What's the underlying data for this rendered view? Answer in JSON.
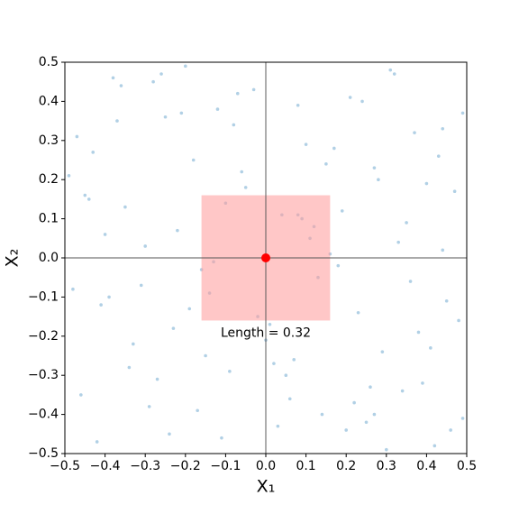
{
  "chart_data": {
    "type": "scatter",
    "x_label": "X₁",
    "y_label": "X₂",
    "x": [
      -0.47,
      -0.41,
      -0.36,
      -0.29,
      -0.22,
      -0.18,
      -0.11,
      -0.05,
      0.02,
      0.08,
      0.13,
      0.19,
      0.26,
      0.31,
      0.38,
      0.44,
      0.49,
      -0.44,
      -0.33,
      -0.25,
      -0.14,
      -0.03,
      0.06,
      0.17,
      0.23,
      0.35,
      0.42,
      -0.49,
      -0.38,
      -0.27,
      -0.16,
      -0.08,
      0.01,
      0.11,
      0.21,
      0.29,
      0.4,
      0.46,
      -0.43,
      -0.31,
      -0.2,
      -0.09,
      0.04,
      0.14,
      0.27,
      0.33,
      0.48,
      -0.46,
      -0.35,
      -0.24,
      -0.12,
      0.0,
      0.09,
      0.18,
      0.3,
      0.37,
      0.45,
      -0.4,
      -0.28,
      -0.17,
      -0.06,
      0.07,
      0.16,
      0.24,
      0.34,
      0.43,
      -0.48,
      -0.37,
      -0.23,
      -0.1,
      0.03,
      0.12,
      0.22,
      0.32,
      0.41,
      0.47,
      -0.42,
      -0.3,
      -0.19,
      -0.07,
      0.05,
      0.15,
      0.25,
      0.36,
      0.44,
      -0.45,
      -0.34,
      -0.21,
      -0.13,
      -0.02,
      0.1,
      0.2,
      0.28,
      0.39,
      0.49,
      -0.39,
      -0.26,
      -0.15,
      0.08,
      0.27
    ],
    "y": [
      0.31,
      -0.12,
      0.44,
      -0.38,
      0.07,
      0.25,
      -0.46,
      0.18,
      -0.27,
      0.39,
      -0.05,
      0.12,
      -0.33,
      0.48,
      -0.19,
      0.02,
      -0.41,
      0.15,
      -0.22,
      0.36,
      -0.09,
      0.43,
      -0.36,
      0.28,
      -0.14,
      0.09,
      -0.48,
      0.21,
      0.46,
      -0.31,
      -0.03,
      0.34,
      -0.17,
      0.05,
      0.41,
      -0.24,
      0.19,
      -0.44,
      0.27,
      -0.07,
      0.49,
      -0.29,
      0.11,
      -0.4,
      0.23,
      0.04,
      -0.16,
      -0.35,
      0.13,
      -0.45,
      0.38,
      -0.21,
      0.1,
      -0.02,
      -0.49,
      0.32,
      -0.11,
      0.06,
      0.45,
      -0.39,
      0.22,
      -0.26,
      0.01,
      0.4,
      -0.34,
      0.26,
      -0.08,
      0.35,
      -0.18,
      0.14,
      -0.43,
      0.08,
      -0.37,
      0.47,
      -0.23,
      0.17,
      -0.47,
      0.03,
      -0.13,
      0.42,
      -0.3,
      0.24,
      -0.42,
      -0.06,
      0.33,
      0.16,
      -0.28,
      0.37,
      -0.01,
      -0.15,
      0.29,
      -0.44,
      0.2,
      -0.32,
      0.37,
      -0.1,
      0.47,
      -0.25,
      0.11,
      -0.4
    ],
    "color": "#1f77b4",
    "region": {
      "xlim": [
        -0.16,
        0.16
      ],
      "ylim": [
        -0.16,
        0.16
      ],
      "color": "#ff9999"
    },
    "center": {
      "x": 0,
      "y": 0,
      "color": "#ff0000"
    },
    "annotation": "Length = 0.32",
    "xlim": [
      -0.5,
      0.5
    ],
    "ylim": [
      -0.5,
      0.5
    ],
    "xticks": [
      {
        "value": -0.5,
        "label": "−0.5"
      },
      {
        "value": -0.4,
        "label": "−0.4"
      },
      {
        "value": -0.3,
        "label": "−0.3"
      },
      {
        "value": -0.2,
        "label": "−0.2"
      },
      {
        "value": -0.1,
        "label": "−0.1"
      },
      {
        "value": 0,
        "label": "0.0"
      },
      0.1,
      0.2,
      0.3,
      0.4,
      0.5
    ],
    "yticks": [
      {
        "value": -0.5,
        "label": "−0.5"
      },
      {
        "value": -0.4,
        "label": "−0.4"
      },
      {
        "value": -0.3,
        "label": "−0.3"
      },
      {
        "value": -0.2,
        "label": "−0.2"
      },
      {
        "value": -0.1,
        "label": "−0.1"
      },
      {
        "value": 0,
        "label": "0.0"
      },
      0.1,
      0.2,
      0.3,
      0.4,
      0.5
    ]
  }
}
